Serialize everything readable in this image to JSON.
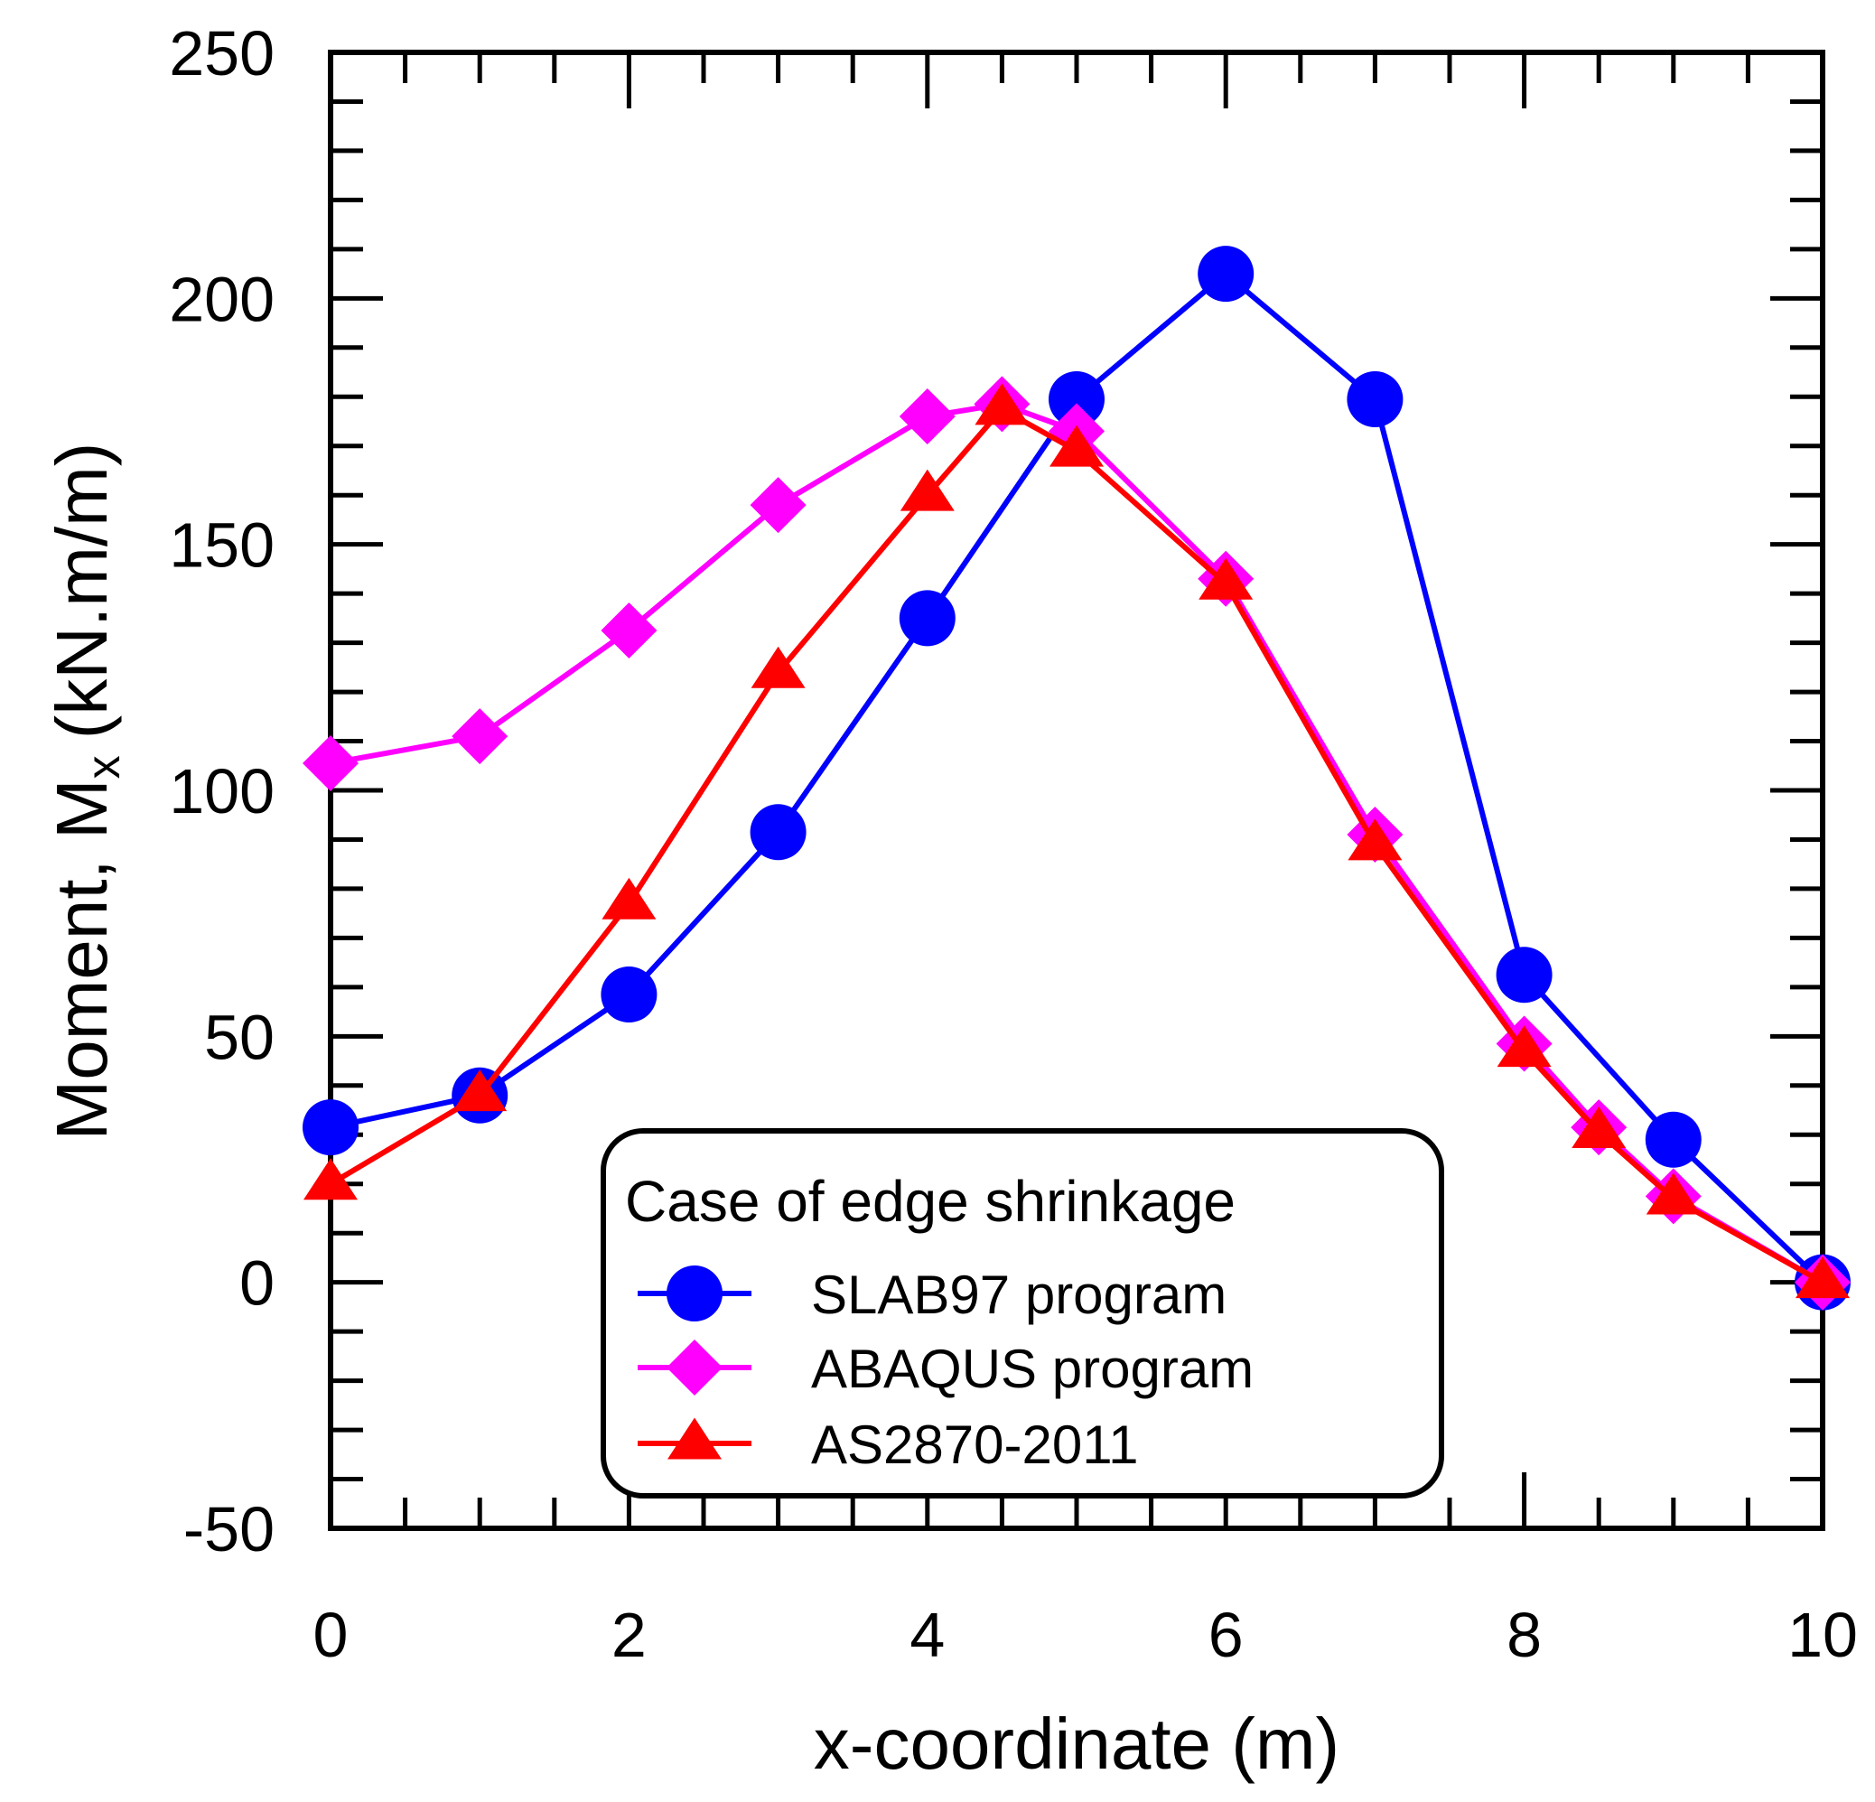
{
  "chart_data": {
    "type": "line",
    "title": "",
    "xlabel": "x-coordinate (m)",
    "ylabel_main": "Moment, M",
    "ylabel_sub": "x",
    "ylabel_unit": "(kN.m/m)",
    "xlim": [
      0,
      10
    ],
    "ylim": [
      -50,
      250
    ],
    "x_ticks": [
      0,
      2,
      4,
      6,
      8,
      10
    ],
    "x_tick_labels": [
      "0",
      "2",
      "4",
      "6",
      "8",
      "10"
    ],
    "y_ticks": [
      -50,
      0,
      50,
      100,
      150,
      200,
      250
    ],
    "y_tick_labels": [
      "-50",
      "0",
      "50",
      "100",
      "150",
      "200",
      "250"
    ],
    "grid": false,
    "legend": {
      "title": "Case of edge shrinkage",
      "placement": "bottom-center"
    },
    "series": [
      {
        "name": "SLAB97 program",
        "color": "#0000ff",
        "marker": "circle",
        "x": [
          0,
          1,
          2,
          3,
          4,
          5,
          6,
          7,
          8,
          9,
          10
        ],
        "y": [
          31.5,
          38,
          58.5,
          91.5,
          135,
          179.5,
          205,
          179.5,
          62.5,
          29,
          0
        ]
      },
      {
        "name": "ABAQUS program",
        "color": "#ff00ff",
        "marker": "diamond",
        "x": [
          0,
          1,
          2,
          3,
          4,
          4.5,
          5,
          6,
          7,
          8,
          8.5,
          9,
          10
        ],
        "y": [
          105.5,
          111,
          132.5,
          158,
          176,
          178.5,
          173,
          143,
          91,
          48.5,
          31.5,
          17.5,
          0
        ]
      },
      {
        "name": "AS2870-2011",
        "color": "#ff0000",
        "marker": "triangle",
        "x": [
          0,
          1,
          2,
          3,
          4,
          4.5,
          5,
          6,
          7,
          8,
          8.5,
          9,
          10
        ],
        "y": [
          20,
          38,
          77,
          124,
          160,
          177.5,
          169,
          142,
          89,
          47,
          30.5,
          17,
          0
        ]
      }
    ]
  }
}
